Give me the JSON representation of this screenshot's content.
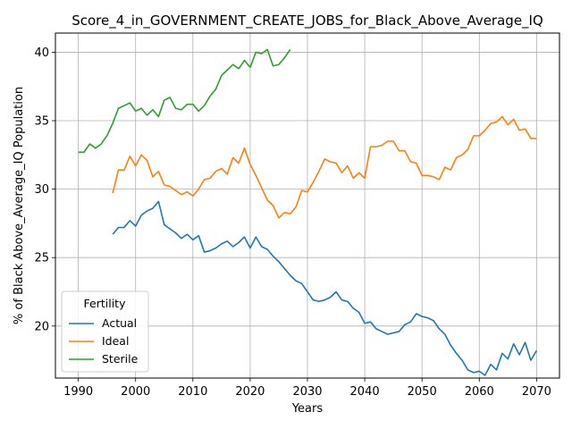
{
  "chart_data": {
    "type": "line",
    "title": "Score_4_in_GOVERNMENT_CREATE_JOBS_for_Black_Above_Average_IQ",
    "xlabel": "Years",
    "ylabel": "% of Black Above_Average_IQ Population",
    "xlim": [
      1986,
      2074
    ],
    "ylim": [
      16.2,
      41.4
    ],
    "x_ticks": [
      1990,
      2000,
      2010,
      2020,
      2030,
      2040,
      2050,
      2060,
      2070
    ],
    "y_ticks": [
      20,
      25,
      30,
      35,
      40
    ],
    "grid": true,
    "legend": {
      "title": "Fertility",
      "location": "lower-left"
    },
    "series": [
      {
        "name": "Actual",
        "color": "#1f77b4",
        "x": [
          1996,
          1997,
          1998,
          1999,
          2000,
          2001,
          2002,
          2003,
          2004,
          2005,
          2006,
          2007,
          2008,
          2009,
          2010,
          2011,
          2012,
          2013,
          2014,
          2015,
          2016,
          2017,
          2018,
          2019,
          2020,
          2021,
          2022,
          2023,
          2024,
          2025,
          2026,
          2027,
          2028,
          2029,
          2030,
          2031,
          2032,
          2033,
          2034,
          2035,
          2036,
          2037,
          2038,
          2039,
          2040,
          2041,
          2042,
          2043,
          2044,
          2045,
          2046,
          2047,
          2048,
          2049,
          2050,
          2051,
          2052,
          2053,
          2054,
          2055,
          2056,
          2057,
          2058,
          2059,
          2060,
          2061,
          2062,
          2063,
          2064,
          2065,
          2066,
          2067,
          2068,
          2069,
          2070
        ],
        "values": [
          26.7,
          27.2,
          27.2,
          27.7,
          27.3,
          28.1,
          28.4,
          28.6,
          29.1,
          27.4,
          27.1,
          26.8,
          26.4,
          26.7,
          26.3,
          26.6,
          25.4,
          25.5,
          25.7,
          26.0,
          26.2,
          25.8,
          26.1,
          26.5,
          25.7,
          26.5,
          25.8,
          25.6,
          25.1,
          24.7,
          24.2,
          23.7,
          23.3,
          23.1,
          22.5,
          21.9,
          21.8,
          21.9,
          22.1,
          22.5,
          21.9,
          21.8,
          21.3,
          21.0,
          20.2,
          20.3,
          19.8,
          19.6,
          19.4,
          19.5,
          19.6,
          20.1,
          20.3,
          20.9,
          20.7,
          20.6,
          20.4,
          19.8,
          19.4,
          18.6,
          18.0,
          17.5,
          16.8,
          16.6,
          16.7,
          16.4,
          17.2,
          16.8,
          18.0,
          17.6,
          18.7,
          17.9,
          18.8,
          17.5,
          18.2
        ]
      },
      {
        "name": "Ideal",
        "color": "#ff7f0e",
        "x": [
          1996,
          1997,
          1998,
          1999,
          2000,
          2001,
          2002,
          2003,
          2004,
          2005,
          2006,
          2007,
          2008,
          2009,
          2010,
          2011,
          2012,
          2013,
          2014,
          2015,
          2016,
          2017,
          2018,
          2019,
          2020,
          2021,
          2022,
          2023,
          2024,
          2025,
          2026,
          2027,
          2028,
          2029,
          2030,
          2031,
          2032,
          2033,
          2034,
          2035,
          2036,
          2037,
          2038,
          2039,
          2040,
          2041,
          2042,
          2043,
          2044,
          2045,
          2046,
          2047,
          2048,
          2049,
          2050,
          2051,
          2052,
          2053,
          2054,
          2055,
          2056,
          2057,
          2058,
          2059,
          2060,
          2061,
          2062,
          2063,
          2064,
          2065,
          2066,
          2067,
          2068,
          2069,
          2070
        ],
        "values": [
          29.7,
          31.4,
          31.4,
          32.4,
          31.7,
          32.5,
          32.1,
          30.9,
          31.3,
          30.3,
          30.2,
          29.9,
          29.6,
          29.8,
          29.5,
          30.0,
          30.7,
          30.8,
          31.3,
          31.5,
          31.1,
          32.3,
          31.9,
          33.0,
          31.8,
          31.0,
          30.1,
          29.2,
          28.8,
          27.9,
          28.3,
          28.2,
          28.7,
          29.9,
          29.8,
          30.5,
          31.3,
          32.2,
          32.0,
          31.9,
          31.2,
          31.7,
          30.8,
          31.2,
          30.8,
          33.1,
          33.1,
          33.2,
          33.5,
          33.5,
          32.8,
          32.8,
          32.0,
          31.9,
          31.0,
          31.0,
          30.9,
          30.7,
          31.6,
          31.4,
          32.3,
          32.5,
          32.9,
          33.9,
          33.9,
          34.3,
          34.8,
          34.9,
          35.3,
          34.7,
          35.1,
          34.3,
          34.4,
          33.7,
          33.7
        ]
      },
      {
        "name": "Sterile",
        "color": "#2ca02c",
        "x": [
          1990,
          1991,
          1992,
          1993,
          1994,
          1995,
          1996,
          1997,
          1998,
          1999,
          2000,
          2001,
          2002,
          2003,
          2004,
          2005,
          2006,
          2007,
          2008,
          2009,
          2010,
          2011,
          2012,
          2013,
          2014,
          2015,
          2016,
          2017,
          2018,
          2019,
          2020,
          2021,
          2022,
          2023,
          2024,
          2025,
          2026,
          2027
        ],
        "values": [
          32.7,
          32.7,
          33.3,
          33.0,
          33.3,
          33.9,
          34.8,
          35.9,
          36.1,
          36.3,
          35.7,
          35.9,
          35.4,
          35.8,
          35.3,
          36.5,
          36.7,
          35.9,
          35.8,
          36.2,
          36.2,
          35.7,
          36.1,
          36.8,
          37.3,
          38.3,
          38.7,
          39.1,
          38.8,
          39.4,
          38.9,
          40.0,
          39.9,
          40.2,
          39.0,
          39.1,
          39.6,
          40.2
        ]
      }
    ]
  }
}
